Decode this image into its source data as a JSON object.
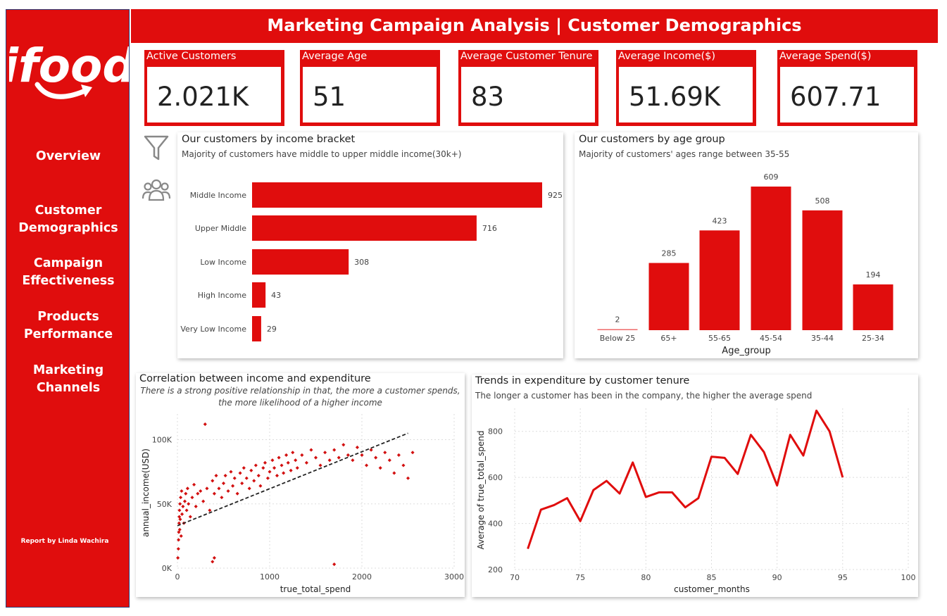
{
  "report_title": "Marketing Campaign Analysis | Customer Demographics",
  "brand": {
    "logo_text": "ifood",
    "color": "#e00d0d"
  },
  "nav": [
    {
      "lines": [
        "Overview"
      ]
    },
    {
      "lines": [
        "Customer",
        "Demographics"
      ]
    },
    {
      "lines": [
        "Campaign",
        "Effectiveness"
      ]
    },
    {
      "lines": [
        "Products",
        "Performance"
      ]
    },
    {
      "lines": [
        "Marketing",
        "Channels"
      ]
    }
  ],
  "credit": "Report by Linda Wachira",
  "kpis": [
    {
      "label": "Active Customers",
      "value": "2.021K"
    },
    {
      "label": "Average Age",
      "value": "51"
    },
    {
      "label": "Average Customer Tenure",
      "value": "83"
    },
    {
      "label": "Average Income($)",
      "value": "51.69K"
    },
    {
      "label": "Average Spend($)",
      "value": "607.71"
    }
  ],
  "tool_icons": [
    "filter-icon",
    "people-icon"
  ],
  "chart_data": [
    {
      "type": "bar",
      "orientation": "horizontal",
      "title": "Our customers by income bracket",
      "subtitle": "Majority of customers have middle to upper middle income(30k+)",
      "categories": [
        "Middle Income",
        "Upper Middle",
        "Low Income",
        "High Income",
        "Very Low Income"
      ],
      "values": [
        925,
        716,
        308,
        43,
        29
      ],
      "data_labels": [
        "925",
        "716",
        "308",
        "43",
        "29"
      ],
      "color": "#e00d0d"
    },
    {
      "type": "bar",
      "title": "Our customers by age group",
      "subtitle": "Majority of customers' ages range between 35-55",
      "xlabel": "Age_group",
      "categories": [
        "Below 25",
        "65+",
        "55-65",
        "45-54",
        "35-44",
        "25-34"
      ],
      "values": [
        2,
        285,
        423,
        609,
        508,
        194
      ],
      "data_labels": [
        "2",
        "285",
        "423",
        "609",
        "508",
        "194"
      ],
      "color": "#e00d0d"
    },
    {
      "type": "scatter",
      "title": "Correlation between income and expenditure",
      "subtitle": "There is a strong positive relationship in that, the more a customer spends, the more likelihood of a higher income",
      "xlabel": "true_total_spend",
      "ylabel": "annual_income(USD)",
      "xlim": [
        0,
        3000
      ],
      "ylim": [
        0,
        120000
      ],
      "xticks": [
        "0",
        "1000",
        "2000",
        "3000"
      ],
      "yticks": [
        "0K",
        "50K",
        "100K"
      ],
      "trend_line": {
        "x": [
          0,
          2500
        ],
        "y": [
          33000,
          105000
        ]
      },
      "points_approx": [
        [
          5,
          8000
        ],
        [
          10,
          15000
        ],
        [
          12,
          22000
        ],
        [
          15,
          28000
        ],
        [
          18,
          35000
        ],
        [
          20,
          40000
        ],
        [
          22,
          45000
        ],
        [
          25,
          30000
        ],
        [
          28,
          50000
        ],
        [
          30,
          38000
        ],
        [
          35,
          55000
        ],
        [
          40,
          25000
        ],
        [
          45,
          60000
        ],
        [
          50,
          42000
        ],
        [
          60,
          48000
        ],
        [
          70,
          35000
        ],
        [
          80,
          52000
        ],
        [
          90,
          58000
        ],
        [
          100,
          45000
        ],
        [
          110,
          62000
        ],
        [
          120,
          50000
        ],
        [
          140,
          40000
        ],
        [
          160,
          55000
        ],
        [
          180,
          65000
        ],
        [
          200,
          48000
        ],
        [
          220,
          58000
        ],
        [
          250,
          60000
        ],
        [
          280,
          52000
        ],
        [
          300,
          112000
        ],
        [
          320,
          62000
        ],
        [
          350,
          45000
        ],
        [
          380,
          68000
        ],
        [
          400,
          58000
        ],
        [
          420,
          72000
        ],
        [
          450,
          62000
        ],
        [
          480,
          55000
        ],
        [
          500,
          66000
        ],
        [
          520,
          72000
        ],
        [
          550,
          60000
        ],
        [
          580,
          75000
        ],
        [
          600,
          64000
        ],
        [
          620,
          70000
        ],
        [
          650,
          58000
        ],
        [
          680,
          74000
        ],
        [
          700,
          66000
        ],
        [
          720,
          78000
        ],
        [
          750,
          70000
        ],
        [
          780,
          62000
        ],
        [
          800,
          76000
        ],
        [
          830,
          68000
        ],
        [
          850,
          80000
        ],
        [
          880,
          72000
        ],
        [
          900,
          64000
        ],
        [
          930,
          78000
        ],
        [
          950,
          82000
        ],
        [
          980,
          70000
        ],
        [
          1000,
          75000
        ],
        [
          1030,
          84000
        ],
        [
          1050,
          78000
        ],
        [
          1080,
          72000
        ],
        [
          1100,
          86000
        ],
        [
          1130,
          80000
        ],
        [
          1150,
          74000
        ],
        [
          1180,
          88000
        ],
        [
          1200,
          82000
        ],
        [
          1230,
          76000
        ],
        [
          1250,
          90000
        ],
        [
          1280,
          84000
        ],
        [
          1300,
          78000
        ],
        [
          1350,
          88000
        ],
        [
          1400,
          82000
        ],
        [
          1450,
          92000
        ],
        [
          1500,
          86000
        ],
        [
          1550,
          80000
        ],
        [
          1600,
          90000
        ],
        [
          1650,
          84000
        ],
        [
          1700,
          92000
        ],
        [
          1750,
          86000
        ],
        [
          1800,
          96000
        ],
        [
          1850,
          88000
        ],
        [
          1900,
          84000
        ],
        [
          1950,
          94000
        ],
        [
          2000,
          88000
        ],
        [
          2050,
          80000
        ],
        [
          2100,
          92000
        ],
        [
          2150,
          86000
        ],
        [
          2200,
          78000
        ],
        [
          2250,
          90000
        ],
        [
          2300,
          84000
        ],
        [
          2350,
          74000
        ],
        [
          2400,
          88000
        ],
        [
          2450,
          80000
        ],
        [
          2500,
          70000
        ],
        [
          2550,
          90000
        ],
        [
          1700,
          3000
        ],
        [
          400,
          8000
        ],
        [
          380,
          5000
        ]
      ]
    },
    {
      "type": "line",
      "title": "Trends in expenditure by customer tenure",
      "subtitle": "The longer a customer has been in the company, the higher the average spend",
      "xlabel": "customer_months",
      "ylabel": "Average of true_total_spend",
      "xlim": [
        70,
        100
      ],
      "ylim": [
        200,
        900
      ],
      "xticks": [
        "70",
        "75",
        "80",
        "85",
        "90",
        "95",
        "100"
      ],
      "yticks": [
        "200",
        "400",
        "600",
        "800"
      ],
      "x": [
        71,
        72,
        73,
        74,
        75,
        76,
        77,
        78,
        79,
        80,
        81,
        82,
        83,
        84,
        85,
        86,
        87,
        88,
        89,
        90,
        91,
        92,
        93,
        94,
        95
      ],
      "values": [
        290,
        460,
        480,
        510,
        410,
        545,
        585,
        530,
        665,
        515,
        535,
        535,
        470,
        510,
        690,
        685,
        615,
        785,
        710,
        565,
        785,
        695,
        890,
        800,
        600
      ],
      "color": "#e00d0d"
    }
  ]
}
